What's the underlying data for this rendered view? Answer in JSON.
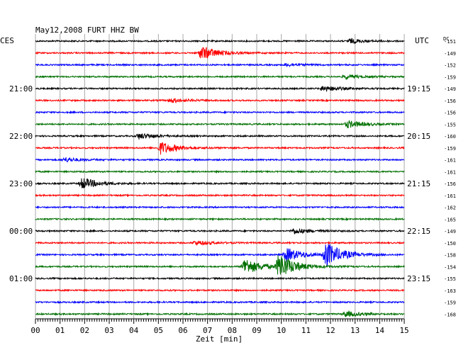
{
  "chart_data": {
    "type": "line",
    "title": "May12,2008  FURT HHZ BW",
    "left_timezone": "CES",
    "right_timezone": "UTC",
    "dc_label": "DC",
    "xlabel": "Zeit [min]",
    "xlim": [
      0,
      15
    ],
    "x_ticks": [
      "00",
      "01",
      "02",
      "03",
      "04",
      "05",
      "06",
      "07",
      "08",
      "09",
      "10",
      "11",
      "12",
      "13",
      "14",
      "15"
    ],
    "trace_colors": [
      "#000000",
      "#ff0000",
      "#0000ff",
      "#007000"
    ],
    "left_hour_labels": [
      {
        "trace": 4,
        "label": "21:00"
      },
      {
        "trace": 8,
        "label": "22:00"
      },
      {
        "trace": 12,
        "label": "23:00"
      },
      {
        "trace": 16,
        "label": "00:00"
      },
      {
        "trace": 20,
        "label": "01:00"
      }
    ],
    "right_hour_labels": [
      {
        "trace": 4,
        "label": "19:15"
      },
      {
        "trace": 8,
        "label": "20:15"
      },
      {
        "trace": 12,
        "label": "21:15"
      },
      {
        "trace": 16,
        "label": "22:15"
      },
      {
        "trace": 20,
        "label": "23:15"
      }
    ],
    "dc_offsets": [
      "-151",
      "-149",
      "-152",
      "-159",
      "-149",
      "-156",
      "-156",
      "-155",
      "-160",
      "-159",
      "-161",
      "-161",
      "-156",
      "-161",
      "-162",
      "-165",
      "-149",
      "-150",
      "-158",
      "-154",
      "-155",
      "-163",
      "-159",
      "-168"
    ],
    "events": [
      {
        "trace": 0,
        "x": 12.8,
        "amp": 3
      },
      {
        "trace": 1,
        "x": 6.75,
        "amp": 10
      },
      {
        "trace": 2,
        "x": 10.2,
        "amp": 2
      },
      {
        "trace": 3,
        "x": 12.6,
        "amp": 3
      },
      {
        "trace": 4,
        "x": 11.7,
        "amp": 4
      },
      {
        "trace": 5,
        "x": 5.5,
        "amp": 3
      },
      {
        "trace": 7,
        "x": 12.7,
        "amp": 5
      },
      {
        "trace": 8,
        "x": 4.2,
        "amp": 4
      },
      {
        "trace": 9,
        "x": 5.1,
        "amp": 9
      },
      {
        "trace": 10,
        "x": 1.2,
        "amp": 3
      },
      {
        "trace": 12,
        "x": 1.9,
        "amp": 8
      },
      {
        "trace": 16,
        "x": 10.5,
        "amp": 4
      },
      {
        "trace": 17,
        "x": 6.5,
        "amp": 3
      },
      {
        "trace": 18,
        "x": 11.8,
        "amp": 18
      },
      {
        "trace": 18,
        "x": 10.2,
        "amp": 10
      },
      {
        "trace": 19,
        "x": 9.9,
        "amp": 18
      },
      {
        "trace": 19,
        "x": 8.5,
        "amp": 12
      },
      {
        "trace": 23,
        "x": 12.6,
        "amp": 4
      }
    ]
  }
}
